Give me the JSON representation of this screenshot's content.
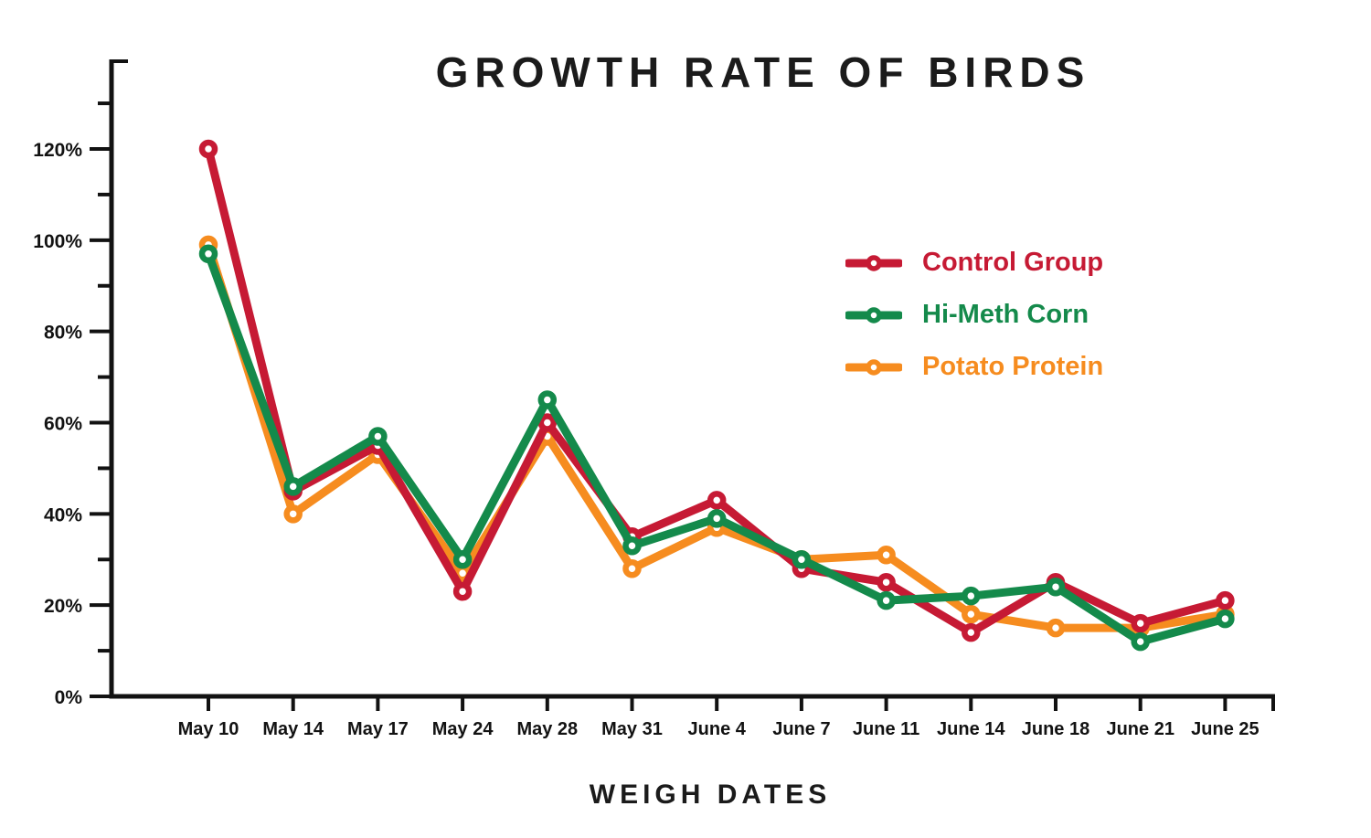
{
  "chart_data": {
    "type": "line",
    "title": "GROWTH RATE OF BIRDS",
    "xlabel": "WEIGH DATES",
    "ylabel": "",
    "categories": [
      "May 10",
      "May 14",
      "May 17",
      "May 24",
      "May 28",
      "May 31",
      "June 4",
      "June 7",
      "June 11",
      "June 14",
      "June 18",
      "June 21",
      "June 25"
    ],
    "series": [
      {
        "name": "Control Group",
        "color": "#C61A34",
        "values": [
          120,
          45,
          55,
          23,
          60,
          35,
          43,
          28,
          25,
          14,
          25,
          16,
          21
        ]
      },
      {
        "name": "Hi-Meth Corn",
        "color": "#148A4B",
        "values": [
          97,
          46,
          57,
          30,
          65,
          33,
          39,
          30,
          21,
          22,
          24,
          12,
          17
        ]
      },
      {
        "name": "Potato Protein",
        "color": "#F68C1F",
        "values": [
          99,
          40,
          53,
          27,
          57,
          28,
          37,
          30,
          31,
          18,
          15,
          15,
          18
        ]
      }
    ],
    "y_ticks_major": [
      0,
      20,
      40,
      60,
      80,
      100,
      120
    ],
    "y_ticks_minor": [
      10,
      30,
      50,
      70,
      90,
      110,
      130
    ],
    "y_tick_label_suffix": "%",
    "ylim": [
      0,
      135
    ],
    "grid": false,
    "legend_position": "inside-upper-right",
    "z_order": [
      "Potato Protein",
      "Control Group",
      "Hi-Meth Corn"
    ],
    "marker_style": "hollow-circle",
    "axis_color": "#121212"
  }
}
